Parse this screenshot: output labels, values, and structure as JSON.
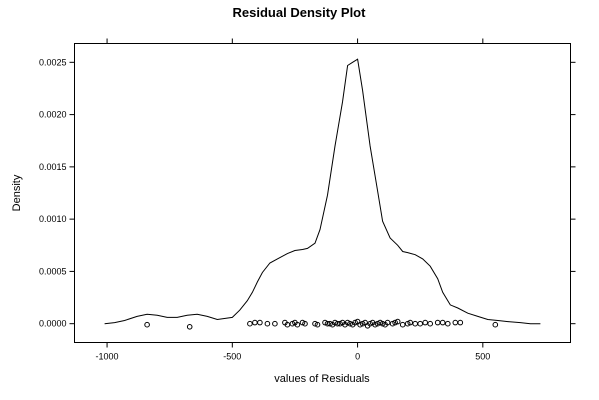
{
  "chart_data": {
    "type": "line",
    "title": "Residual Density Plot",
    "xlabel": "values of Residuals",
    "ylabel": "Density",
    "xlim": [
      -1130,
      850
    ],
    "ylim": [
      -0.00018,
      0.00268
    ],
    "x_ticks": [
      -1000,
      -500,
      0,
      500
    ],
    "x_tick_labels": [
      "-1000",
      "-500",
      "0",
      "500"
    ],
    "y_ticks": [
      0,
      0.0005,
      0.001,
      0.0015,
      0.002,
      0.0025
    ],
    "y_tick_labels": [
      "0.0000",
      "0.0005",
      "0.0010",
      "0.0015",
      "0.0020",
      "0.0025"
    ],
    "grid": false,
    "series": [
      {
        "values_x": [
          -1010,
          -970,
          -930,
          -880,
          -840,
          -800,
          -760,
          -720,
          -680,
          -640,
          -600,
          -560,
          -500,
          -470,
          -440,
          -420,
          -400,
          -380,
          -350,
          -320,
          -280,
          -250,
          -220,
          -200,
          -170,
          -150,
          -120,
          -90,
          -60,
          -40,
          -20,
          0,
          20,
          50,
          80,
          100,
          130,
          160,
          180,
          200,
          230,
          260,
          290,
          320,
          340,
          370,
          400,
          440,
          480,
          520,
          560,
          600,
          650,
          690,
          730
        ],
        "values_y": [
          0.0,
          1e-05,
          3e-05,
          7e-05,
          9e-05,
          8e-05,
          6e-05,
          6e-05,
          8e-05,
          9e-05,
          7e-05,
          4e-05,
          6e-05,
          0.00013,
          0.00022,
          0.0003,
          0.0004,
          0.00049,
          0.00058,
          0.00062,
          0.00067,
          0.0007,
          0.00071,
          0.00072,
          0.00077,
          0.0009,
          0.00123,
          0.0017,
          0.00212,
          0.00247,
          0.0025,
          0.00253,
          0.00223,
          0.0017,
          0.00127,
          0.00098,
          0.00082,
          0.00075,
          0.00069,
          0.00068,
          0.00066,
          0.00062,
          0.00055,
          0.00043,
          0.0003,
          0.00018,
          0.00015,
          0.0001,
          7e-05,
          4e-05,
          3e-05,
          2e-05,
          1e-05,
          0.0,
          0.0
        ]
      }
    ],
    "rug": {
      "x": [
        -840,
        -670,
        -430,
        -410,
        -390,
        -360,
        -330,
        -290,
        -280,
        -260,
        -250,
        -240,
        -220,
        -210,
        -170,
        -160,
        -130,
        -120,
        -110,
        -100,
        -90,
        -80,
        -70,
        -60,
        -50,
        -40,
        -30,
        -20,
        -10,
        0,
        10,
        20,
        30,
        40,
        50,
        60,
        70,
        80,
        90,
        100,
        110,
        120,
        140,
        150,
        160,
        180,
        200,
        210,
        230,
        250,
        270,
        290,
        320,
        340,
        360,
        390,
        410,
        550
      ],
      "y": [
        -1e-05,
        -3e-05,
        0.0,
        1e-05,
        1e-05,
        0.0,
        0.0,
        1e-05,
        -1e-05,
        0.0,
        1e-05,
        -1e-05,
        1e-05,
        0.0,
        0.0,
        -1e-05,
        1e-05,
        0.0,
        0.0,
        -1e-05,
        1e-05,
        0.0,
        0.0,
        1e-05,
        -1e-05,
        1e-05,
        0.0,
        -1e-05,
        1e-05,
        2e-05,
        -1e-05,
        0.0,
        1e-05,
        -2e-05,
        0.0,
        1e-05,
        -1e-05,
        0.0,
        1e-05,
        0.0,
        -1e-05,
        1e-05,
        0.0,
        1e-05,
        2e-05,
        -1e-05,
        0.0,
        1e-05,
        0.0,
        0.0,
        1e-05,
        0.0,
        1e-05,
        1e-05,
        0.0,
        1e-05,
        1e-05,
        -1e-05
      ]
    }
  }
}
